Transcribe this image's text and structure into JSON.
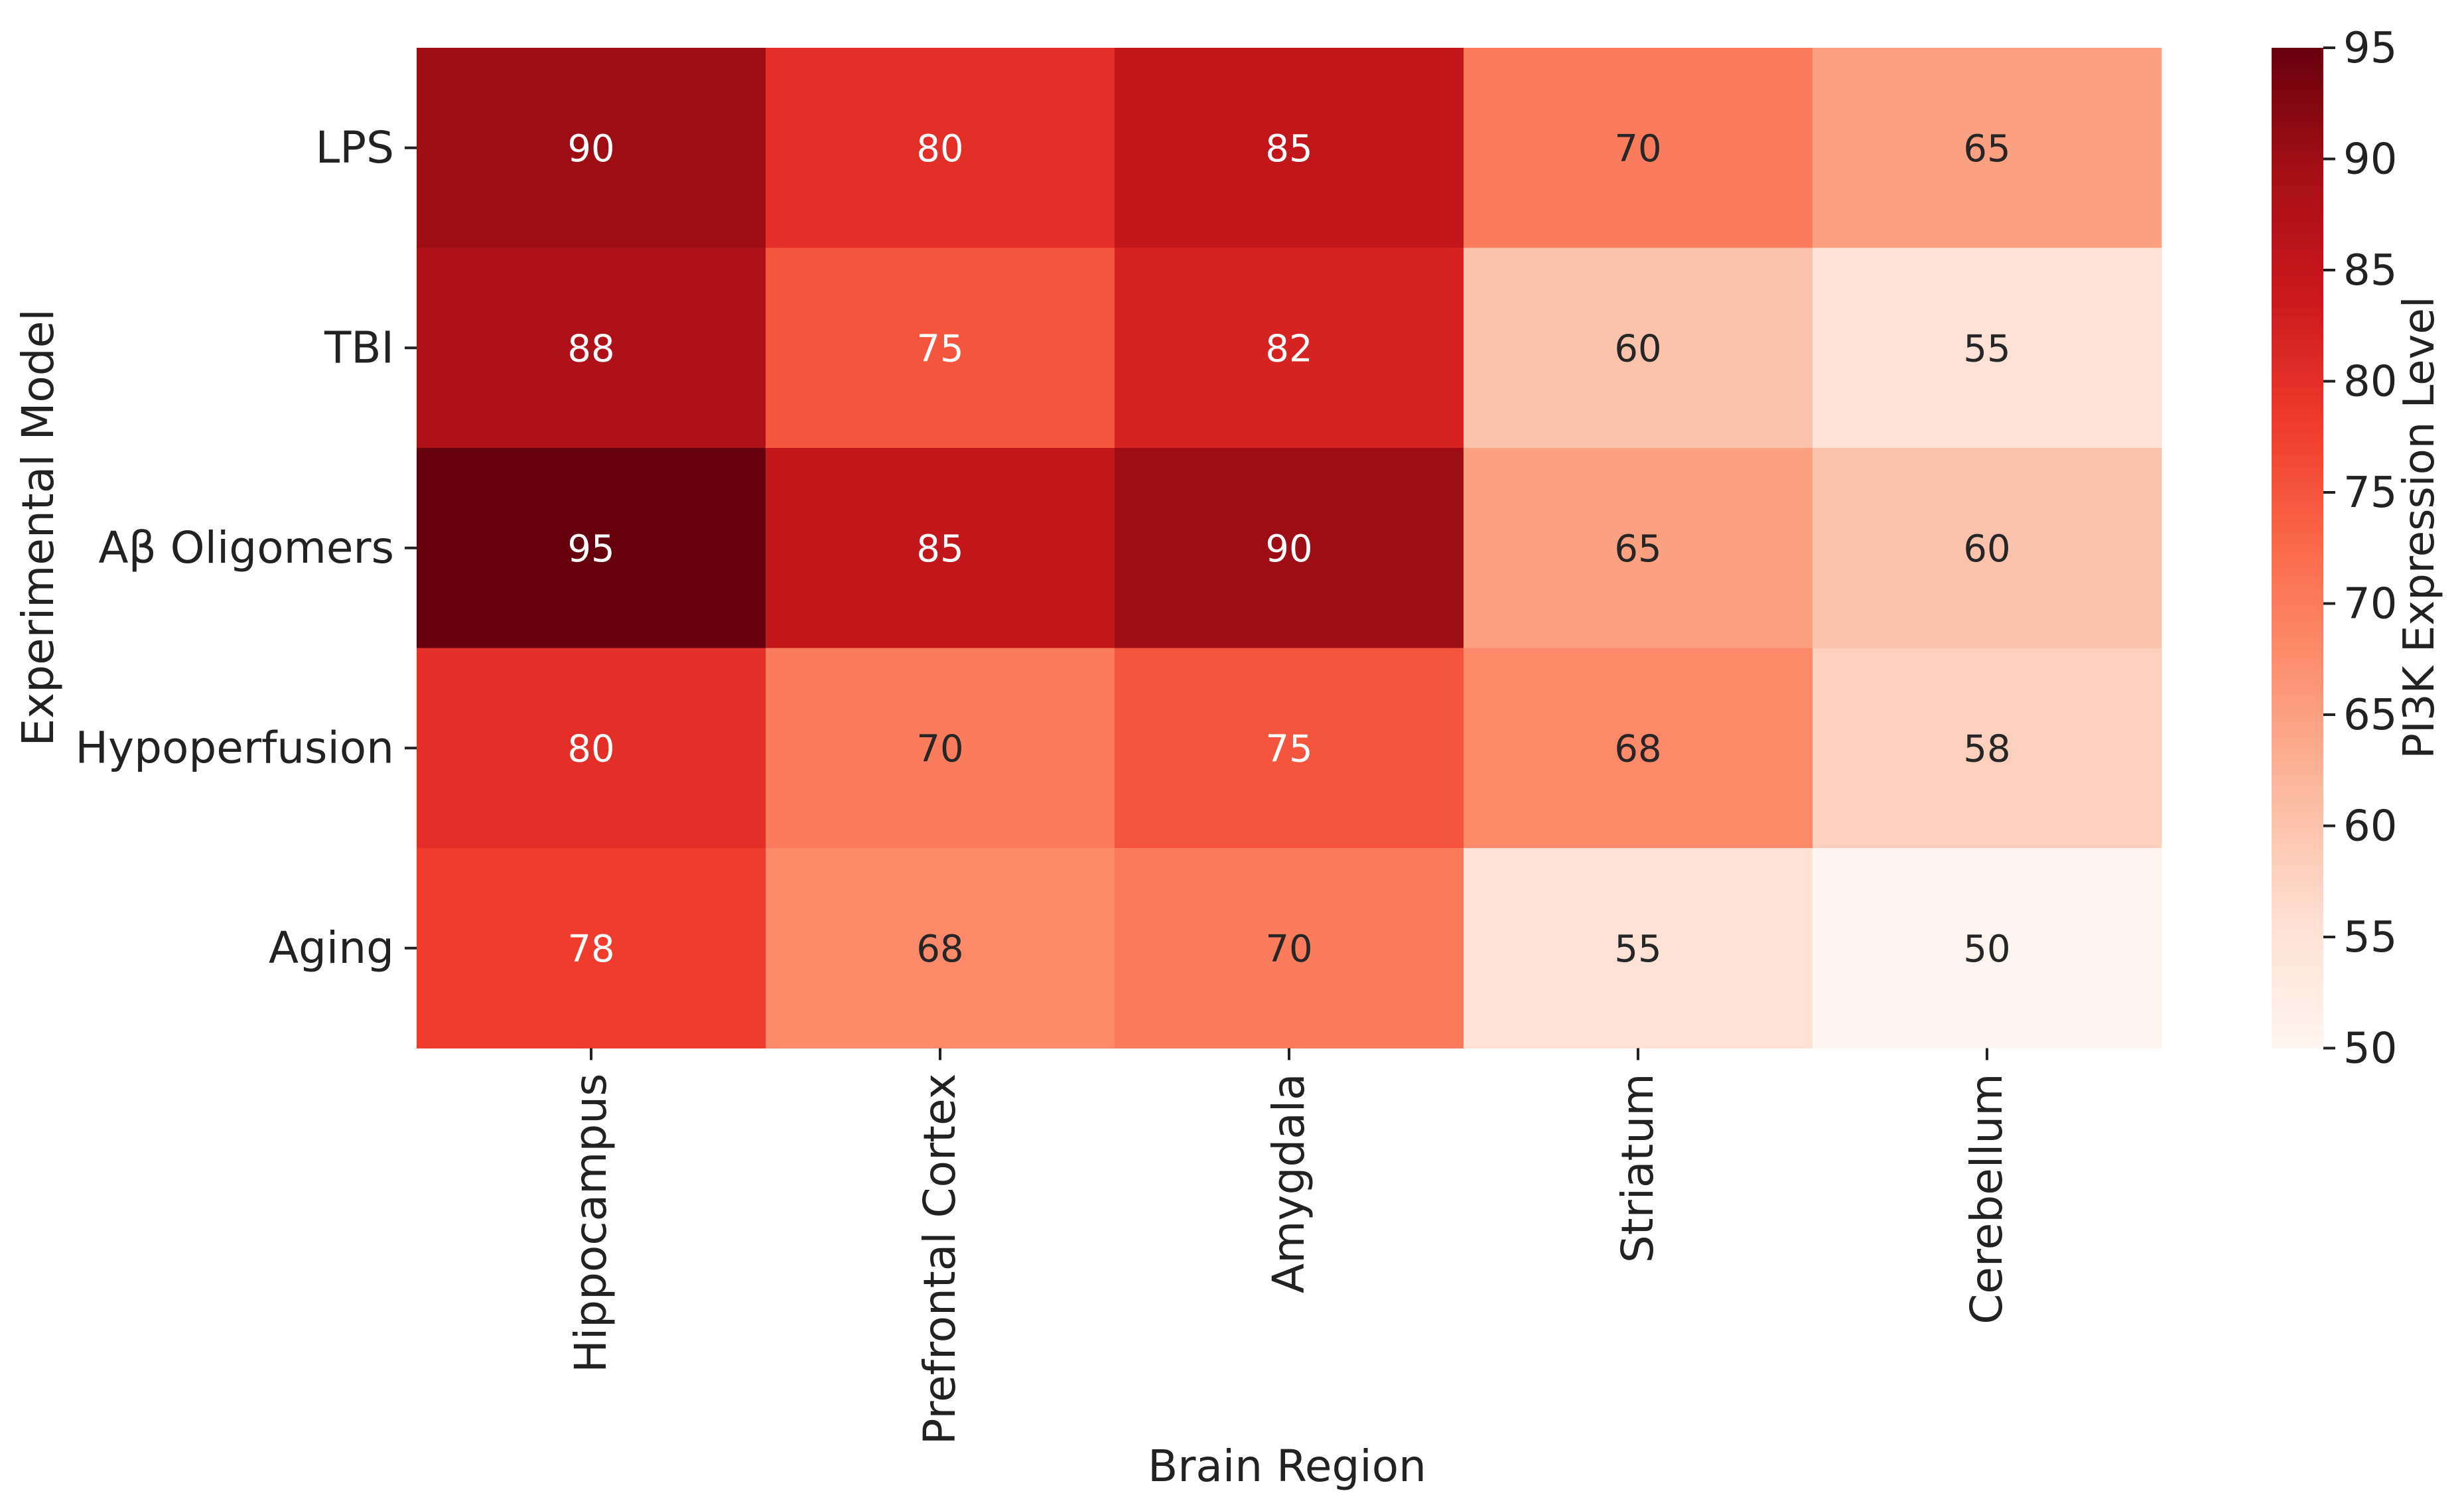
{
  "chart_data": {
    "type": "heatmap",
    "title": "",
    "xlabel": "Brain Region",
    "ylabel": "Experimental Model",
    "x_categories": [
      "Hippocampus",
      "Prefrontal Cortex",
      "Amygdala",
      "Striatum",
      "Cerebellum"
    ],
    "y_categories": [
      "LPS",
      "TBI",
      "Aβ Oligomers",
      "Hypoperfusion",
      "Aging"
    ],
    "values": [
      [
        90,
        80,
        85,
        70,
        65
      ],
      [
        88,
        75,
        82,
        60,
        55
      ],
      [
        95,
        85,
        90,
        65,
        60
      ],
      [
        80,
        70,
        75,
        68,
        58
      ],
      [
        78,
        68,
        70,
        55,
        50
      ]
    ],
    "colorbar": {
      "label": "PI3K Expression Level",
      "range": [
        50,
        95
      ],
      "ticks": [
        "50",
        "55",
        "60",
        "65",
        "70",
        "75",
        "80",
        "85",
        "90",
        "95"
      ],
      "colormap": "Reds",
      "colors": [
        "#fff5f0",
        "#fee0d2",
        "#fcbba1",
        "#fc9272",
        "#fb6a4a",
        "#ef3b2c",
        "#cb181d",
        "#a50f15",
        "#67000d"
      ]
    },
    "grid": false,
    "annotations": true
  }
}
